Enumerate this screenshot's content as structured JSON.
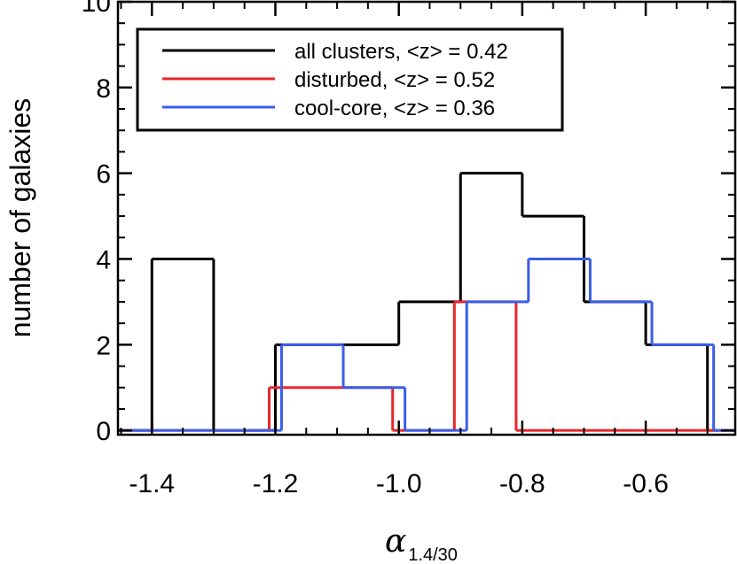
{
  "chart_data": {
    "type": "histogram",
    "title": "",
    "xlabel": {
      "symbol": "α",
      "subscript": "1.4/30"
    },
    "ylabel": "number of galaxies",
    "xlim": [
      -1.455,
      -0.455
    ],
    "ylim": [
      -0.1,
      10.0
    ],
    "xticks": [
      {
        "value": -1.4,
        "label": "-1.4"
      },
      {
        "value": -1.2,
        "label": "-1.2"
      },
      {
        "value": -1.0,
        "label": "-1.0"
      },
      {
        "value": -0.8,
        "label": "-0.8"
      },
      {
        "value": -0.6,
        "label": "-0.6"
      }
    ],
    "yticks": [
      {
        "value": 0,
        "label": "0"
      },
      {
        "value": 2,
        "label": "2"
      },
      {
        "value": 4,
        "label": "4"
      },
      {
        "value": 6,
        "label": "6"
      },
      {
        "value": 8,
        "label": "8"
      },
      {
        "value": 10,
        "label": "10"
      }
    ],
    "legend_position": "top-left",
    "series": [
      {
        "name": "all clusters",
        "legend": "all clusters, <z> = 0.42",
        "color": "#000000",
        "bin_edges": [
          -1.4,
          -1.3,
          -1.2,
          -1.1,
          -1.0,
          -0.9,
          -0.8,
          -0.7,
          -0.6,
          -0.5
        ],
        "counts": [
          4,
          0,
          2,
          2,
          3,
          6,
          5,
          3,
          2
        ]
      },
      {
        "name": "disturbed",
        "legend": "disturbed, <z> = 0.52",
        "color": "#e8262a",
        "bin_edges": [
          -1.21,
          -1.11,
          -1.01,
          -0.91,
          -0.81,
          -0.71,
          -0.61,
          -0.51
        ],
        "counts": [
          1,
          1,
          0,
          3,
          0,
          0,
          0
        ]
      },
      {
        "name": "cool-core",
        "legend": "cool-core, <z> = 0.36",
        "color": "#3a5ee8",
        "bin_edges": [
          -1.19,
          -1.09,
          -0.99,
          -0.89,
          -0.79,
          -0.69,
          -0.59,
          -0.49
        ],
        "counts": [
          2,
          1,
          0,
          3,
          4,
          3,
          2
        ]
      }
    ]
  }
}
